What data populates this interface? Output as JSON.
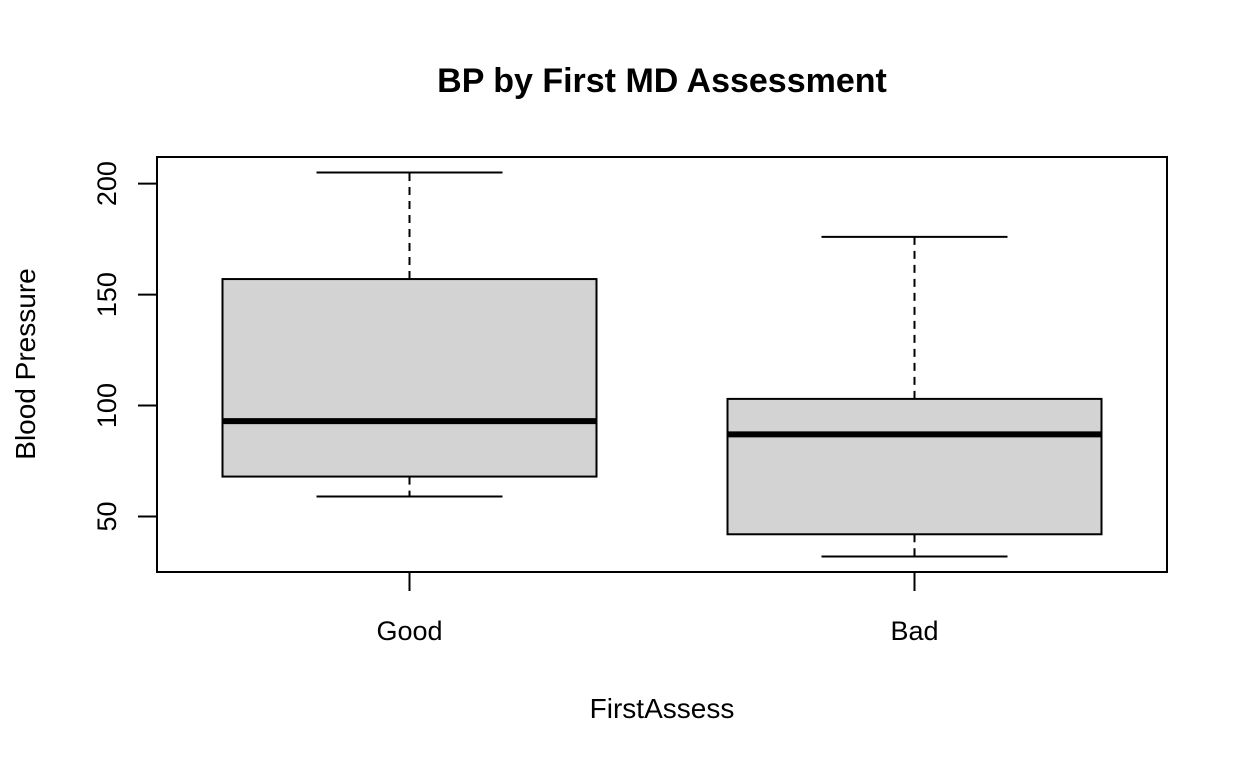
{
  "chart_data": {
    "type": "boxplot",
    "title": "BP by First MD Assessment",
    "xlabel": "FirstAssess",
    "ylabel": "Blood Pressure",
    "categories": [
      "Good",
      "Bad"
    ],
    "y_ticks": [
      50,
      100,
      150,
      200
    ],
    "ylim": [
      25,
      212
    ],
    "grid": false,
    "legend": "none",
    "box_fill": "#d3d3d3",
    "line_color": "#000000",
    "boxes": [
      {
        "category": "Good",
        "whisker_low": 59,
        "q1": 68,
        "median": 93,
        "q3": 157,
        "whisker_high": 205
      },
      {
        "category": "Bad",
        "whisker_low": 32,
        "q1": 42,
        "median": 87,
        "q3": 103,
        "whisker_high": 176
      }
    ]
  }
}
